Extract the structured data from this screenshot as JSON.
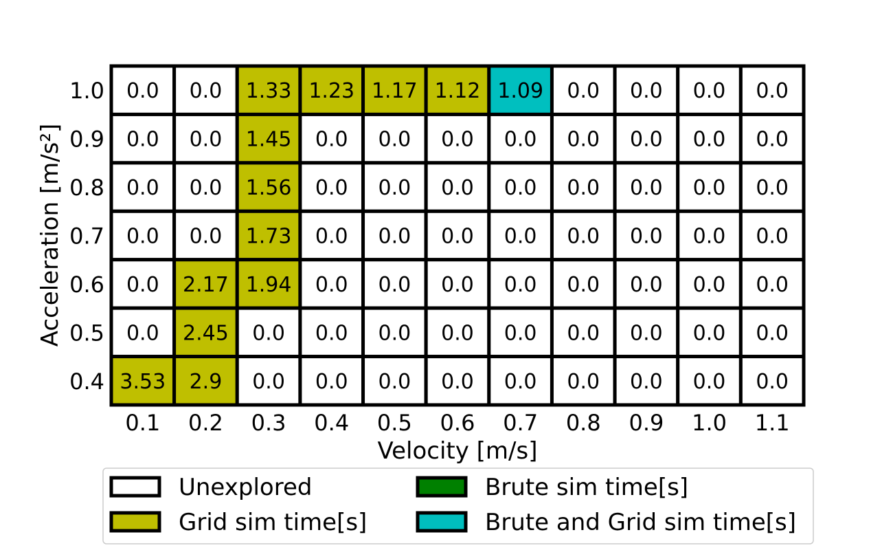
{
  "chart_data": {
    "type": "heatmap",
    "x": [
      "0.1",
      "0.2",
      "0.3",
      "0.4",
      "0.5",
      "0.6",
      "0.7",
      "0.8",
      "0.9",
      "1.0",
      "1.1"
    ],
    "y": [
      "1.0",
      "0.9",
      "0.8",
      "0.7",
      "0.6",
      "0.5",
      "0.4"
    ],
    "xlabel": "Velocity [m/s]",
    "ylabel": "Acceleration [m/s²]",
    "values": [
      [
        "0.0",
        "0.0",
        "1.33",
        "1.23",
        "1.17",
        "1.12",
        "1.09",
        "0.0",
        "0.0",
        "0.0",
        "0.0"
      ],
      [
        "0.0",
        "0.0",
        "1.45",
        "0.0",
        "0.0",
        "0.0",
        "0.0",
        "0.0",
        "0.0",
        "0.0",
        "0.0"
      ],
      [
        "0.0",
        "0.0",
        "1.56",
        "0.0",
        "0.0",
        "0.0",
        "0.0",
        "0.0",
        "0.0",
        "0.0",
        "0.0"
      ],
      [
        "0.0",
        "0.0",
        "1.73",
        "0.0",
        "0.0",
        "0.0",
        "0.0",
        "0.0",
        "0.0",
        "0.0",
        "0.0"
      ],
      [
        "0.0",
        "2.17",
        "1.94",
        "0.0",
        "0.0",
        "0.0",
        "0.0",
        "0.0",
        "0.0",
        "0.0",
        "0.0"
      ],
      [
        "0.0",
        "2.45",
        "0.0",
        "0.0",
        "0.0",
        "0.0",
        "0.0",
        "0.0",
        "0.0",
        "0.0",
        "0.0"
      ],
      [
        "3.53",
        "2.9",
        "0.0",
        "0.0",
        "0.0",
        "0.0",
        "0.0",
        "0.0",
        "0.0",
        "0.0",
        "0.0"
      ]
    ],
    "categories_grid": [
      [
        "unexplored",
        "unexplored",
        "grid",
        "grid",
        "grid",
        "grid",
        "both",
        "unexplored",
        "unexplored",
        "unexplored",
        "unexplored"
      ],
      [
        "unexplored",
        "unexplored",
        "grid",
        "unexplored",
        "unexplored",
        "unexplored",
        "unexplored",
        "unexplored",
        "unexplored",
        "unexplored",
        "unexplored"
      ],
      [
        "unexplored",
        "unexplored",
        "grid",
        "unexplored",
        "unexplored",
        "unexplored",
        "unexplored",
        "unexplored",
        "unexplored",
        "unexplored",
        "unexplored"
      ],
      [
        "unexplored",
        "unexplored",
        "grid",
        "unexplored",
        "unexplored",
        "unexplored",
        "unexplored",
        "unexplored",
        "unexplored",
        "unexplored",
        "unexplored"
      ],
      [
        "unexplored",
        "grid",
        "grid",
        "unexplored",
        "unexplored",
        "unexplored",
        "unexplored",
        "unexplored",
        "unexplored",
        "unexplored",
        "unexplored"
      ],
      [
        "unexplored",
        "grid",
        "unexplored",
        "unexplored",
        "unexplored",
        "unexplored",
        "unexplored",
        "unexplored",
        "unexplored",
        "unexplored",
        "unexplored"
      ],
      [
        "grid",
        "grid",
        "unexplored",
        "unexplored",
        "unexplored",
        "unexplored",
        "unexplored",
        "unexplored",
        "unexplored",
        "unexplored",
        "unexplored"
      ]
    ],
    "colors": {
      "unexplored": "#ffffff",
      "grid": "#bfbf00",
      "brute": "#008000",
      "both": "#00bfbf",
      "border": "#000000"
    },
    "legend": {
      "placement": "bottom",
      "entries": [
        {
          "key": "unexplored",
          "label": "Unexplored"
        },
        {
          "key": "brute",
          "label": "Brute sim time[s]"
        },
        {
          "key": "grid",
          "label": "Grid sim time[s]"
        },
        {
          "key": "both",
          "label": "Brute and Grid sim time[s]"
        }
      ]
    }
  }
}
